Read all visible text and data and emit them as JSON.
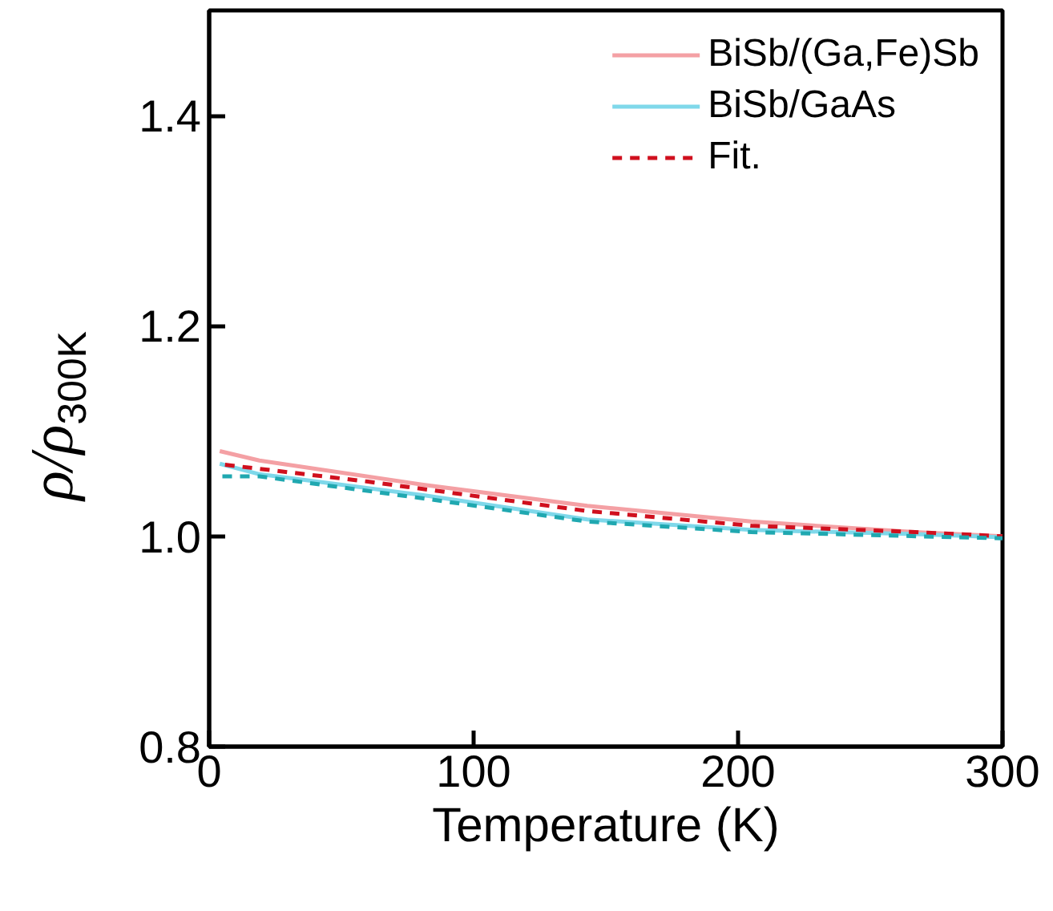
{
  "chart_data": {
    "type": "line",
    "xlabel": "Temperature (K)",
    "ylabel": "ρ/ρ$_{300K}$",
    "xlim": [
      0,
      300
    ],
    "ylim": [
      0.8,
      1.5
    ],
    "xticks": [
      0,
      100,
      200,
      300
    ],
    "yticks": [
      {
        "value": 0.8,
        "label": "0.8"
      },
      {
        "value": 1.0,
        "label": "1.0"
      },
      {
        "value": 1.2,
        "label": "1.2"
      },
      {
        "value": 1.4,
        "label": "1.4"
      }
    ],
    "grid": false,
    "legend": "top right",
    "marker": "none",
    "series": [
      {
        "name": "BiSb/(Ga,Fe)Sb",
        "color": "#f4a0a4",
        "line_style": "solid",
        "x": [
          4,
          19,
          81,
          143,
          205,
          267,
          300
        ],
        "values": [
          1.081,
          1.072,
          1.049,
          1.029,
          1.014,
          1.004,
          1.0
        ]
      },
      {
        "name": "BiSb/GaAs",
        "color": "#7fd8ea",
        "line_style": "solid",
        "x": [
          4,
          19,
          81,
          143,
          205,
          267,
          300
        ],
        "values": [
          1.069,
          1.059,
          1.039,
          1.016,
          1.006,
          1.002,
          0.999
        ]
      },
      {
        "name": "Fit.",
        "color": "#d0101e",
        "line_style": "dashed",
        "x": [
          6,
          60,
          143,
          205,
          267,
          300
        ],
        "values": [
          1.068,
          1.052,
          1.024,
          1.01,
          1.004,
          1.0
        ]
      },
      {
        "color": "#20a8b0",
        "line_style": "dashed",
        "x": [
          5,
          19,
          81,
          143,
          205,
          300
        ],
        "values": [
          1.057,
          1.057,
          1.036,
          1.014,
          1.004,
          0.998
        ]
      }
    ]
  }
}
